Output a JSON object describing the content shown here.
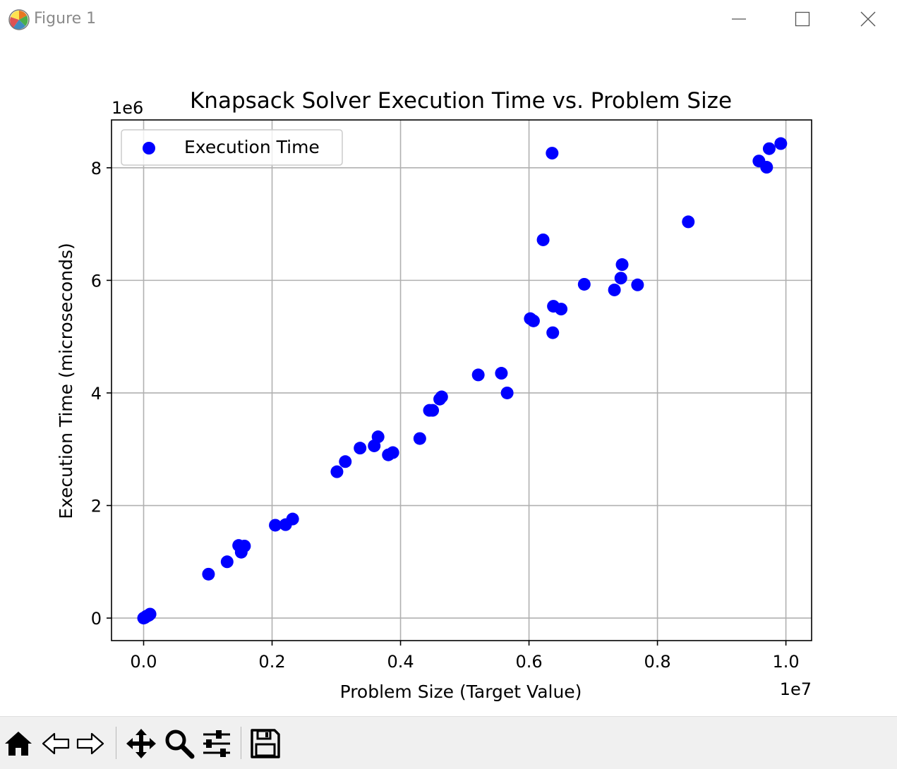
{
  "window": {
    "title": "Figure 1"
  },
  "toolbar": {
    "tools": [
      "home-icon",
      "back-icon",
      "forward-icon",
      "pan-icon",
      "zoom-icon",
      "configure-icon",
      "save-icon"
    ]
  },
  "colors": {
    "marker": "#0000ff",
    "grid": "#b0b0b0",
    "axes": "#000000",
    "toolbar_bg": "#f0f0f0"
  },
  "chart_data": {
    "type": "scatter",
    "title": "Knapsack Solver Execution Time vs. Problem Size",
    "xlabel": "Problem Size (Target Value)",
    "ylabel": "Execution Time (microseconds)",
    "x_offset_label": "1e7",
    "y_offset_label": "1e6",
    "xlim": [
      -0.05,
      1.04
    ],
    "ylim": [
      -0.4,
      8.85
    ],
    "x_ticks": [
      0.0,
      0.2,
      0.4,
      0.6,
      0.8,
      1.0
    ],
    "x_tick_labels": [
      "0.0",
      "0.2",
      "0.4",
      "0.6",
      "0.8",
      "1.0"
    ],
    "y_ticks": [
      0,
      2,
      4,
      6,
      8
    ],
    "y_tick_labels": [
      "0",
      "2",
      "4",
      "6",
      "8"
    ],
    "grid": true,
    "legend": {
      "position": "upper-left",
      "entries": [
        "Execution Time"
      ]
    },
    "series": [
      {
        "name": "Execution Time",
        "color": "#0000ff",
        "x": [
          0.0,
          0.002,
          0.004,
          0.006,
          0.008,
          0.01,
          0.101,
          0.13,
          0.148,
          0.152,
          0.157,
          0.205,
          0.221,
          0.232,
          0.301,
          0.314,
          0.337,
          0.359,
          0.365,
          0.381,
          0.388,
          0.43,
          0.445,
          0.45,
          0.461,
          0.464,
          0.521,
          0.557,
          0.566,
          0.602,
          0.607,
          0.622,
          0.636,
          0.637,
          0.638,
          0.65,
          0.686,
          0.733,
          0.743,
          0.745,
          0.769,
          0.848,
          0.958,
          0.97,
          0.974,
          0.992
        ],
        "y": [
          0.0,
          0.01,
          0.03,
          0.04,
          0.05,
          0.07,
          0.78,
          1.0,
          1.29,
          1.17,
          1.28,
          1.65,
          1.66,
          1.76,
          2.6,
          2.78,
          3.02,
          3.06,
          3.22,
          2.9,
          2.94,
          3.19,
          3.69,
          3.69,
          3.89,
          3.93,
          4.32,
          4.35,
          4.0,
          5.32,
          5.28,
          6.72,
          8.26,
          5.07,
          5.54,
          5.49,
          5.93,
          5.83,
          6.04,
          6.28,
          5.92,
          7.04,
          8.12,
          8.01,
          8.34,
          8.43
        ]
      }
    ]
  }
}
